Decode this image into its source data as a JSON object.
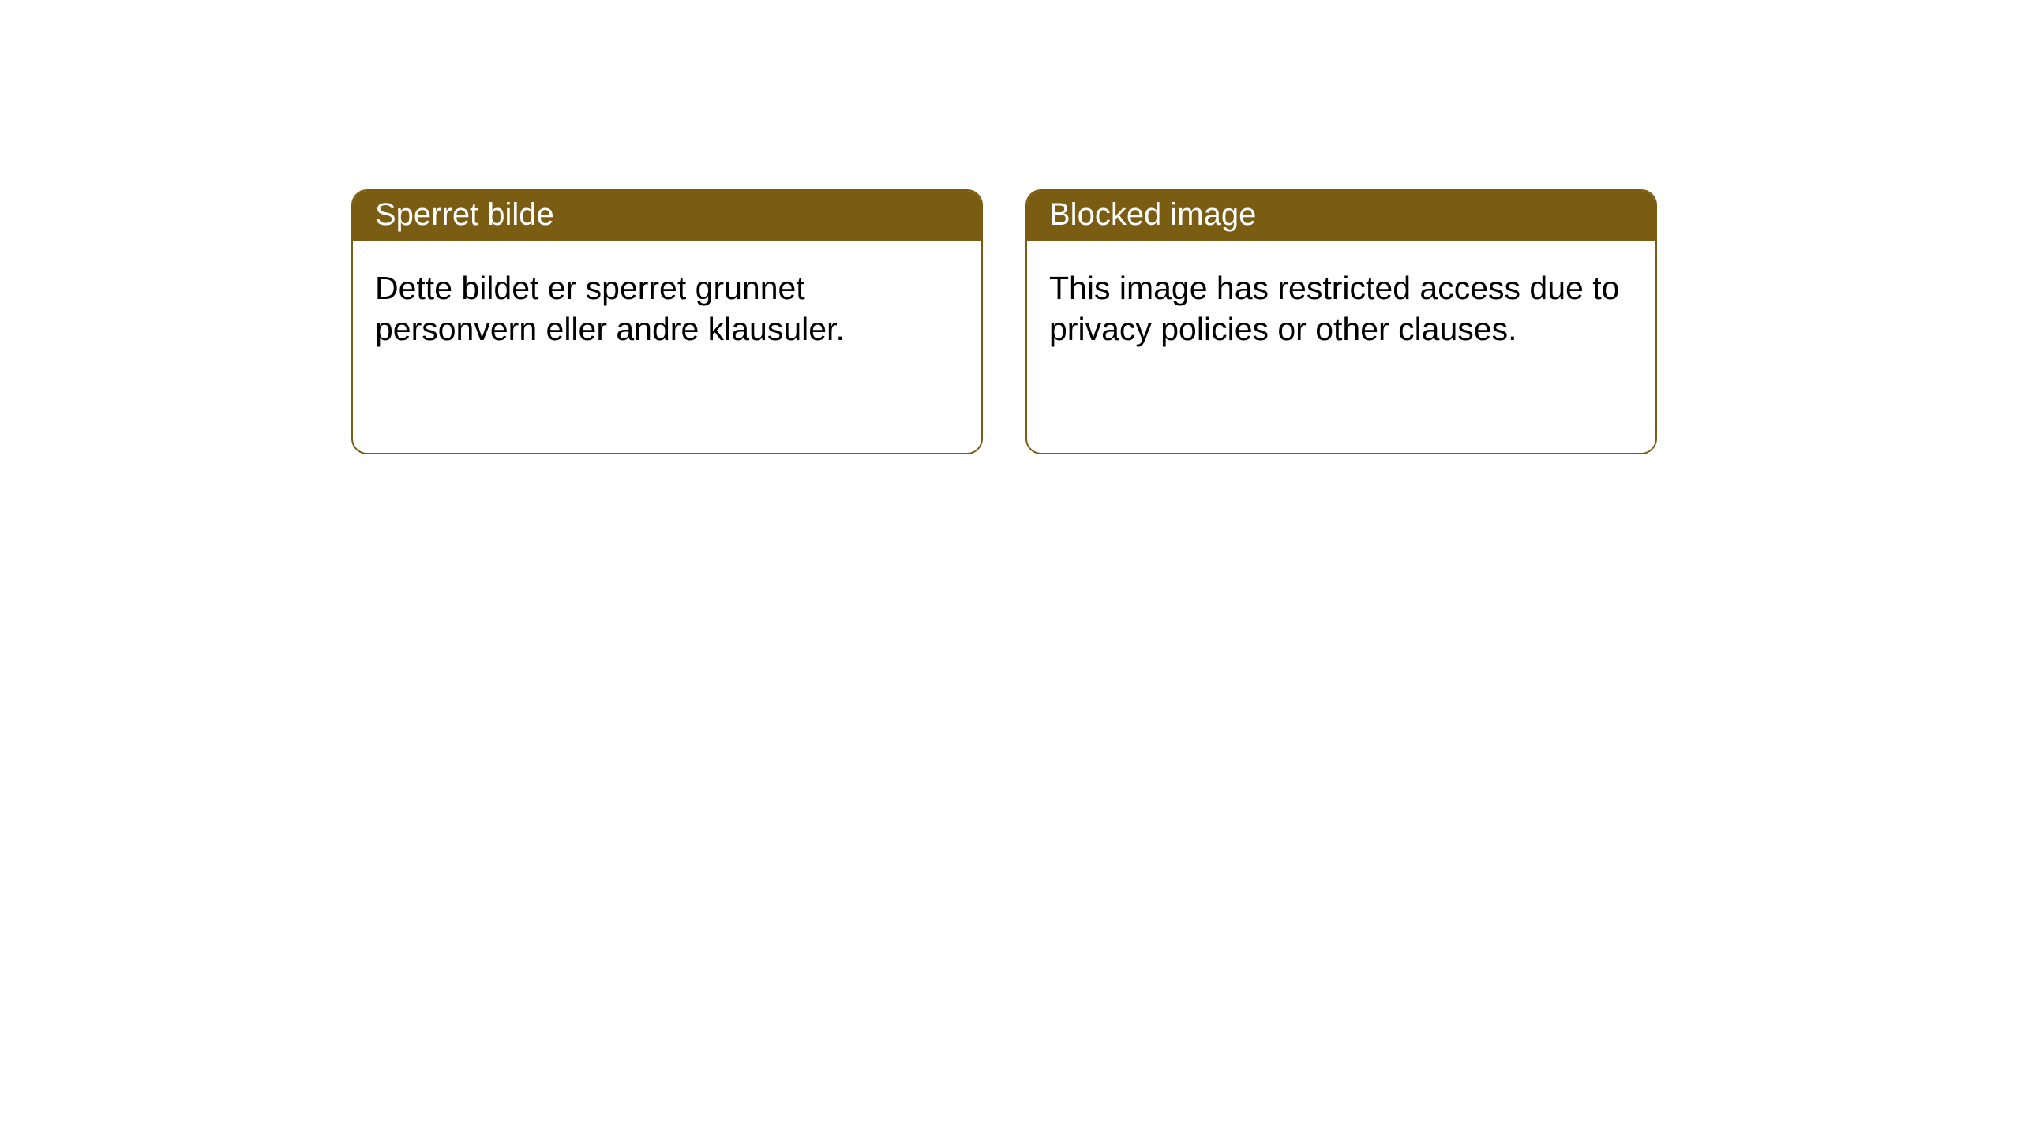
{
  "notices": [
    {
      "title": "Sperret bilde",
      "body": "Dette bildet er sperret grunnet personvern eller andre klausuler."
    },
    {
      "title": "Blocked image",
      "body": "This image has restricted access due to privacy policies or other clauses."
    }
  ],
  "style": {
    "header_bg": "#7a5d13",
    "header_text_color": "#ffffff",
    "border_color": "#7a5d13",
    "body_text_color": "#000000",
    "page_bg": "#ffffff",
    "border_radius": 20,
    "title_fontsize": 40,
    "body_fontsize": 41
  }
}
